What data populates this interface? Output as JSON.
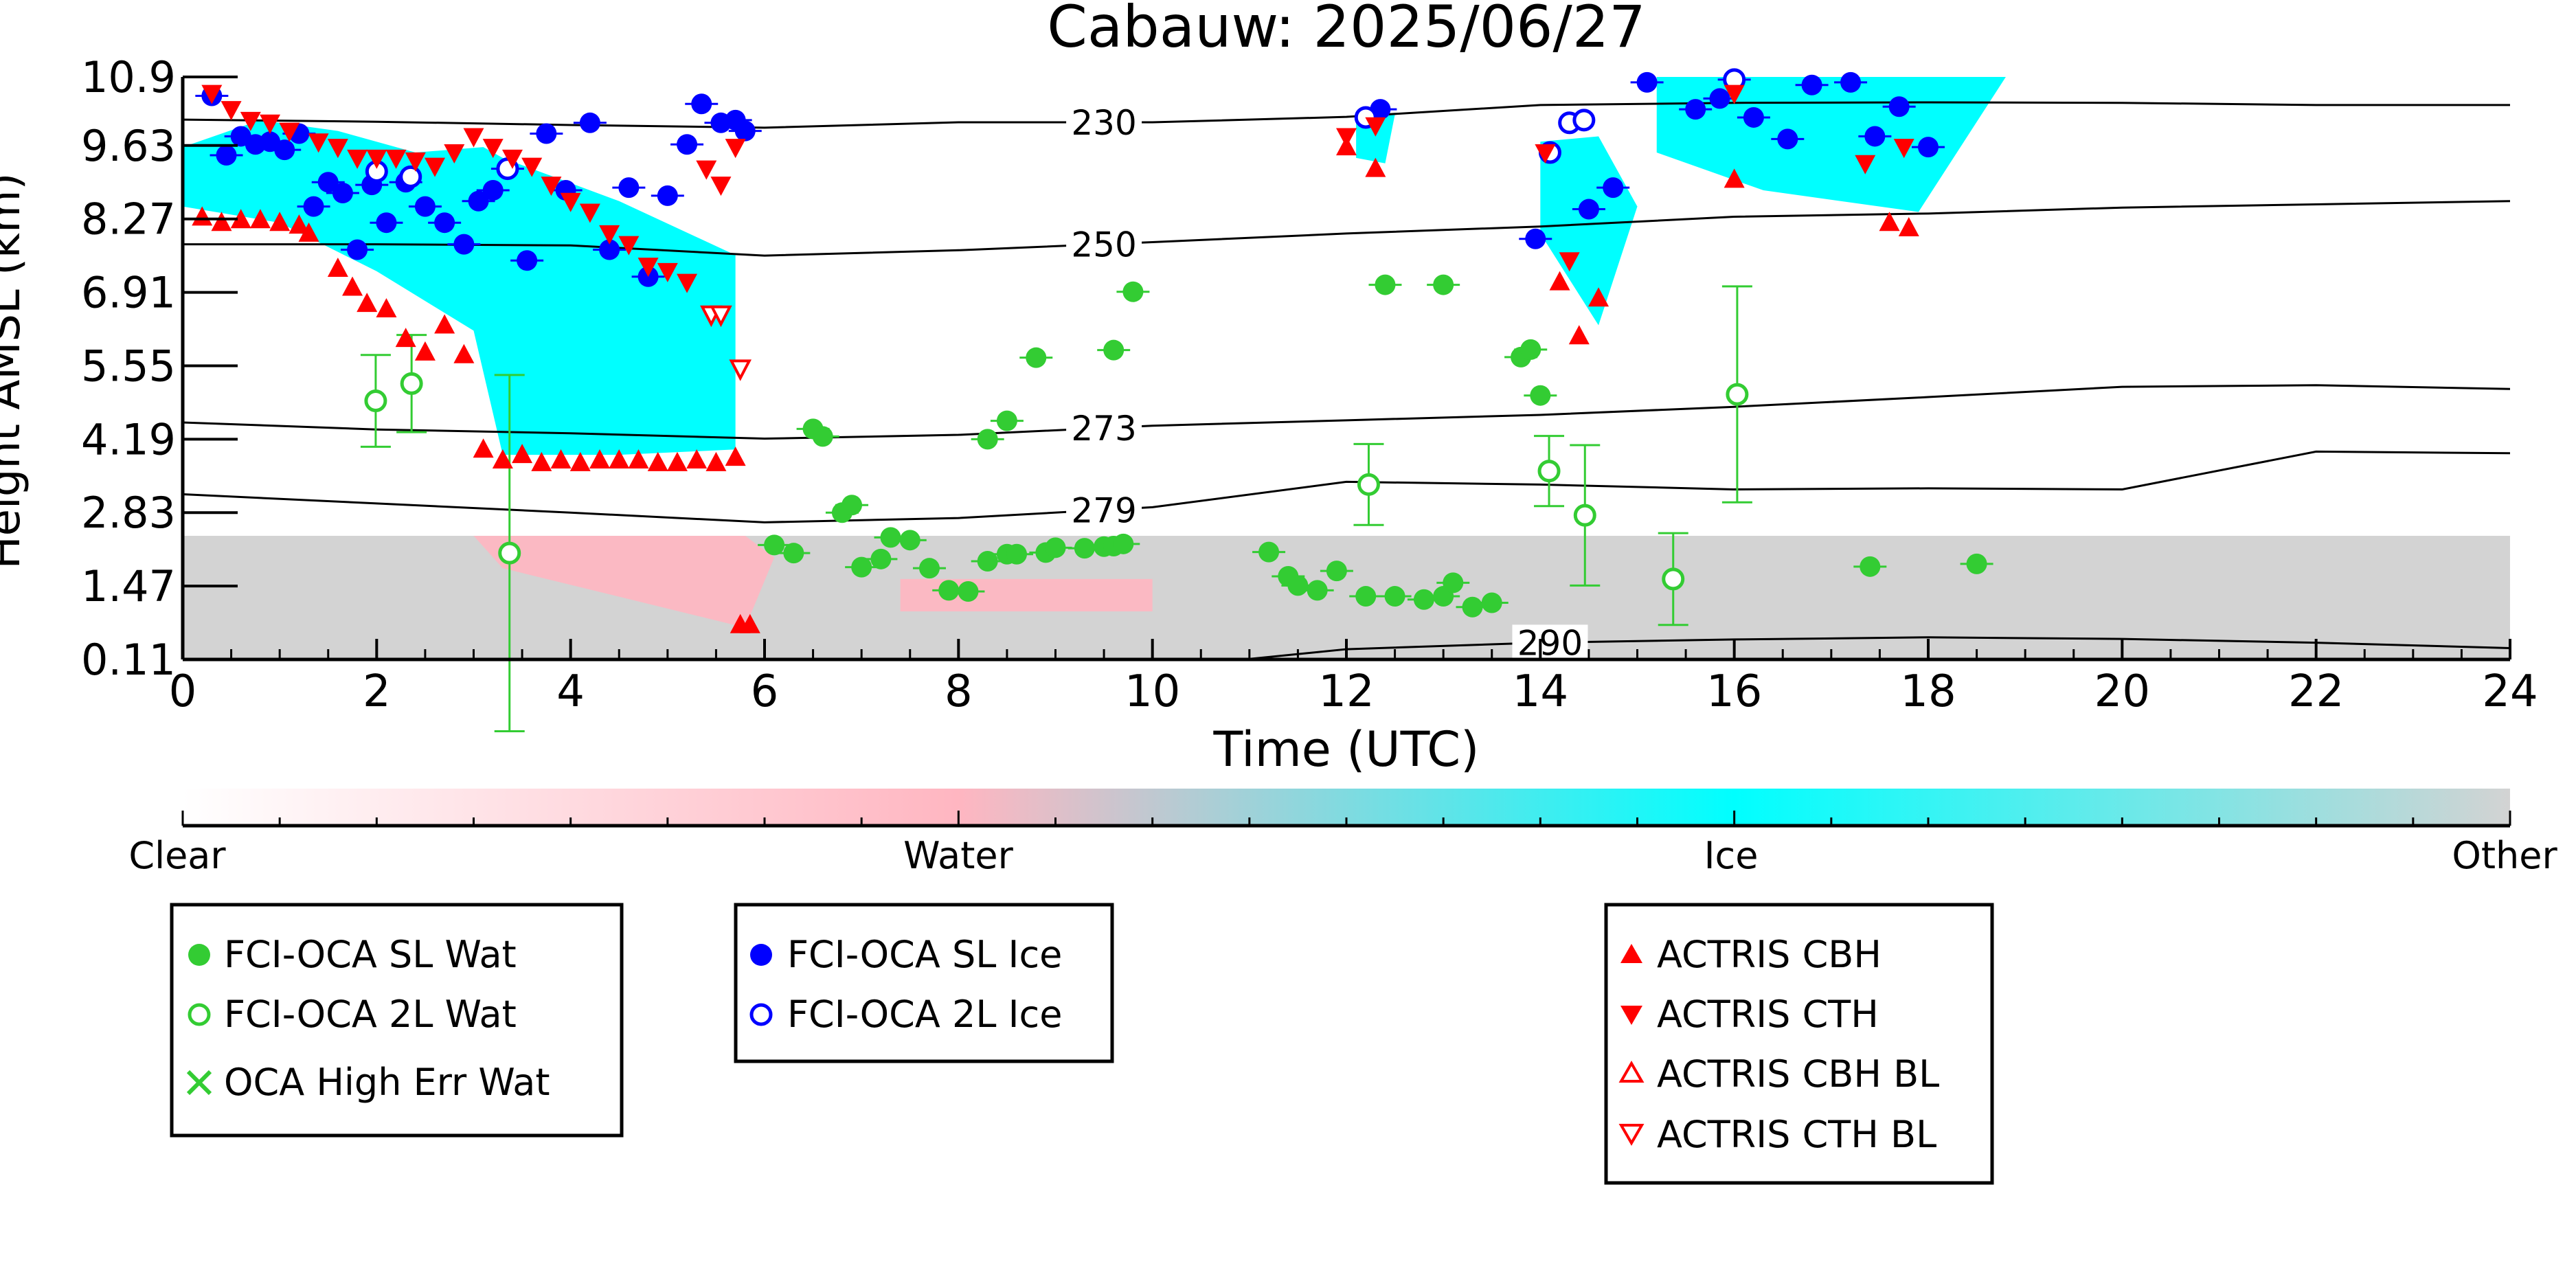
{
  "colors": {
    "sl_wat": "#33cc33",
    "twol_wat": "#33cc33",
    "high_err_wat": "#33cc33",
    "sl_ice": "#0000ff",
    "twol_ice": "#0000ff",
    "actris": "#ff0000",
    "clear": "#ffffff",
    "water": "#ffb6c1",
    "ice": "#00ffff",
    "other": "#d3d3d3"
  },
  "chart_data": {
    "type": "scatter",
    "title": "Cabauw: 2025/06/27",
    "xlabel": "Time (UTC)",
    "ylabel": "Height AMSL (km)",
    "xlim": [
      0,
      24
    ],
    "ylim": [
      0.11,
      10.9
    ],
    "x_ticks": [
      0,
      2,
      4,
      6,
      8,
      10,
      12,
      14,
      16,
      18,
      20,
      22,
      24
    ],
    "y_ticks": [
      "0.11",
      "1.47",
      "2.83",
      "4.19",
      "5.55",
      "6.91",
      "8.27",
      "9.63",
      "10.9"
    ],
    "colorbar": {
      "labels": [
        "Clear",
        "Water",
        "Ice",
        "Other"
      ],
      "stops": [
        "#ffffff",
        "#ffb6c1",
        "#00ffff",
        "#d3d3d3"
      ]
    },
    "background_cloud_mask": {
      "other_low_layer": {
        "x_range": [
          0,
          24
        ],
        "top_km": 2.4
      },
      "ice_regions": [
        {
          "x": [
            0,
            0.8,
            1.6,
            2.4,
            3.1,
            3.3,
            4.5,
            5.7,
            5.7,
            4.5,
            3.3,
            3.0,
            2.0,
            1.0,
            0
          ],
          "y": [
            9.6,
            10.1,
            9.9,
            9.5,
            9.6,
            9.4,
            8.6,
            7.6,
            4.0,
            3.9,
            3.9,
            6.2,
            7.3,
            8.2,
            8.5
          ]
        },
        {
          "x": [
            14,
            14.6,
            15,
            14.6,
            14
          ],
          "y": [
            9.7,
            9.8,
            8.5,
            6.3,
            8.0
          ]
        },
        {
          "x": [
            15.2,
            18.8,
            17.9,
            16.3,
            15.2
          ],
          "y": [
            10.9,
            10.9,
            8.4,
            8.8,
            9.5
          ]
        },
        {
          "x": [
            12.1,
            12.5,
            12.4,
            12.1
          ],
          "y": [
            10.2,
            10.2,
            9.3,
            9.4
          ]
        }
      ],
      "water_regions": [
        {
          "x": [
            3.0,
            5.8,
            6.1,
            5.8,
            3.3
          ],
          "y": [
            2.4,
            2.4,
            2.0,
            0.7,
            1.8
          ]
        },
        {
          "x": [
            7.4,
            10.0,
            10.0,
            7.4
          ],
          "y": [
            1.6,
            1.6,
            1.0,
            1.0
          ]
        }
      ]
    },
    "isotherms": [
      {
        "label": "230",
        "label_x": 9.5,
        "x": [
          0,
          2,
          4,
          6,
          8,
          10,
          12,
          14,
          16,
          18,
          20,
          22,
          24
        ],
        "y": [
          10.11,
          10.07,
          10.01,
          9.96,
          10.06,
          10.06,
          10.16,
          10.38,
          10.42,
          10.43,
          10.42,
          10.38,
          10.38
        ]
      },
      {
        "label": "250",
        "label_x": 9.5,
        "x": [
          0,
          2,
          4,
          6,
          8,
          10,
          12,
          14,
          16,
          18,
          20,
          22,
          24
        ],
        "y": [
          7.8,
          7.8,
          7.78,
          7.59,
          7.69,
          7.84,
          8.0,
          8.13,
          8.31,
          8.37,
          8.48,
          8.54,
          8.6
        ]
      },
      {
        "label": "273",
        "label_x": 9.5,
        "x": [
          0,
          2,
          4,
          6,
          8,
          10,
          12,
          14,
          16,
          18,
          20,
          22,
          24
        ],
        "y": [
          4.5,
          4.37,
          4.3,
          4.2,
          4.27,
          4.44,
          4.54,
          4.64,
          4.79,
          4.97,
          5.16,
          5.19,
          5.12
        ]
      },
      {
        "label": "279",
        "label_x": 9.5,
        "x": [
          0,
          2,
          4,
          6,
          8,
          10,
          12,
          14,
          16,
          18,
          20,
          22,
          24
        ],
        "y": [
          3.17,
          3.0,
          2.83,
          2.65,
          2.73,
          2.93,
          3.4,
          3.35,
          3.26,
          3.28,
          3.26,
          3.96,
          3.93
        ]
      },
      {
        "label": "290",
        "label_x": 14.1,
        "x": [
          0,
          2,
          4,
          6,
          8,
          10,
          11,
          12,
          14,
          16,
          18,
          20,
          22,
          24
        ],
        "y": [
          -0.4,
          -0.3,
          -0.2,
          -0.1,
          -0.05,
          0.0,
          0.12,
          0.3,
          0.42,
          0.48,
          0.52,
          0.49,
          0.42,
          0.32
        ]
      }
    ],
    "series": [
      {
        "name": "FCI-OCA SL Wat",
        "marker": "filled-circle",
        "x": [
          6.1,
          6.3,
          6.5,
          6.6,
          6.8,
          6.9,
          7.0,
          7.2,
          7.3,
          7.5,
          7.7,
          7.9,
          8.1,
          8.3,
          8.5,
          8.6,
          8.9,
          9.0,
          9.3,
          9.5,
          9.6,
          9.7,
          11.2,
          11.4,
          11.5,
          11.7,
          11.9,
          12.2,
          12.5,
          12.8,
          13.0,
          13.1,
          13.3,
          13.5,
          13.8,
          13.9,
          14.0,
          8.3,
          8.5,
          8.8,
          9.6,
          9.8,
          12.4,
          13.0,
          17.4,
          18.5
        ],
        "y": [
          2.23,
          2.08,
          4.38,
          4.24,
          2.83,
          2.97,
          1.82,
          1.97,
          2.37,
          2.32,
          1.8,
          1.39,
          1.37,
          1.93,
          2.06,
          2.06,
          2.09,
          2.18,
          2.17,
          2.2,
          2.21,
          2.25,
          2.1,
          1.65,
          1.48,
          1.39,
          1.75,
          1.28,
          1.28,
          1.22,
          1.28,
          1.53,
          1.08,
          1.16,
          5.71,
          5.85,
          5.0,
          4.19,
          4.53,
          5.7,
          5.84,
          6.92,
          7.05,
          7.05,
          1.83,
          1.88
        ]
      },
      {
        "name": "FCI-OCA 2L Wat",
        "marker": "open-circle",
        "x": [
          1.99,
          2.36,
          3.37,
          12.23,
          14.09,
          14.46,
          15.37,
          16.03
        ],
        "y": [
          4.9,
          5.22,
          2.08,
          3.35,
          3.6,
          2.78,
          1.6,
          5.02
        ],
        "yerr": [
          0.85,
          0.9,
          3.3,
          0.75,
          0.65,
          1.3,
          0.85,
          2.0
        ]
      },
      {
        "name": "OCA High Err Wat",
        "marker": "x",
        "x": [],
        "y": []
      },
      {
        "name": "FCI-OCA SL Ice",
        "marker": "filled-circle",
        "x": [
          0.3,
          0.45,
          0.6,
          0.75,
          0.9,
          1.05,
          1.2,
          1.35,
          1.5,
          1.65,
          1.8,
          1.95,
          2.1,
          2.3,
          2.5,
          2.7,
          2.9,
          3.05,
          3.2,
          3.35,
          3.55,
          3.75,
          3.95,
          4.2,
          4.4,
          4.6,
          4.8,
          5.0,
          5.2,
          5.35,
          5.55,
          5.7,
          5.8,
          12.35,
          13.95,
          14.5,
          14.75,
          15.1,
          15.6,
          15.85,
          16.0,
          16.2,
          16.55,
          16.8,
          17.2,
          17.45,
          17.7,
          18.0
        ],
        "y": [
          10.55,
          9.45,
          9.8,
          9.65,
          9.7,
          9.55,
          9.85,
          8.5,
          8.95,
          8.75,
          7.7,
          8.9,
          8.2,
          8.95,
          8.5,
          8.2,
          7.8,
          8.6,
          8.8,
          9.2,
          7.5,
          9.85,
          8.8,
          10.05,
          7.7,
          8.85,
          7.2,
          8.7,
          9.65,
          10.4,
          10.05,
          10.1,
          9.9,
          10.3,
          7.9,
          8.45,
          8.85,
          10.8,
          10.3,
          10.5,
          10.85,
          10.15,
          9.75,
          10.75,
          10.8,
          9.8,
          10.35,
          9.6
        ]
      },
      {
        "name": "FCI-OCA 2L Ice",
        "marker": "open-circle",
        "x": [
          2.0,
          2.35,
          3.35,
          12.2,
          14.1,
          14.3,
          14.45,
          16.0
        ],
        "y": [
          9.15,
          9.05,
          9.2,
          10.15,
          9.5,
          10.05,
          10.1,
          10.85
        ]
      },
      {
        "name": "ACTRIS CBH",
        "marker": "filled-up-triangle",
        "x": [
          0.2,
          0.4,
          0.6,
          0.8,
          1.0,
          1.2,
          1.3,
          1.6,
          1.75,
          1.9,
          2.1,
          2.3,
          2.5,
          2.7,
          2.9,
          3.1,
          3.3,
          3.5,
          3.7,
          3.9,
          4.1,
          4.3,
          4.5,
          4.7,
          4.9,
          5.1,
          5.3,
          5.5,
          5.7,
          5.75,
          5.85,
          12.0,
          12.3,
          14.2,
          14.4,
          14.6,
          16.0,
          17.6,
          17.8
        ],
        "y": [
          8.3,
          8.2,
          8.25,
          8.25,
          8.2,
          8.15,
          8.0,
          7.35,
          7.0,
          6.7,
          6.6,
          6.05,
          5.8,
          6.3,
          5.75,
          4.0,
          3.8,
          3.9,
          3.75,
          3.8,
          3.75,
          3.8,
          3.8,
          3.8,
          3.75,
          3.75,
          3.8,
          3.75,
          3.85,
          0.75,
          0.75,
          9.6,
          9.2,
          7.1,
          6.1,
          6.8,
          9.0,
          8.2,
          8.1
        ]
      },
      {
        "name": "ACTRIS CTH",
        "marker": "filled-down-triangle",
        "x": [
          0.3,
          0.5,
          0.7,
          0.9,
          1.1,
          1.4,
          1.6,
          1.8,
          2.0,
          2.2,
          2.4,
          2.6,
          2.8,
          3.0,
          3.2,
          3.4,
          3.6,
          3.8,
          4.0,
          4.2,
          4.4,
          4.6,
          4.8,
          5.0,
          5.2,
          5.4,
          5.55,
          5.7,
          12.0,
          12.3,
          14.05,
          14.3,
          16.0,
          17.35,
          17.75
        ],
        "y": [
          10.6,
          10.3,
          10.1,
          10.05,
          9.9,
          9.7,
          9.6,
          9.4,
          9.4,
          9.4,
          9.35,
          9.25,
          9.5,
          9.8,
          9.6,
          9.4,
          9.25,
          8.9,
          8.6,
          8.4,
          8.0,
          7.8,
          7.4,
          7.3,
          7.1,
          9.2,
          8.9,
          9.6,
          9.8,
          10.0,
          9.5,
          7.5,
          10.6,
          9.3,
          9.6
        ]
      },
      {
        "name": "ACTRIS CBH BL",
        "marker": "open-up-triangle",
        "x": [],
        "y": []
      },
      {
        "name": "ACTRIS CTH BL",
        "marker": "open-down-triangle",
        "x": [
          5.45,
          5.55,
          5.75
        ],
        "y": [
          6.5,
          6.5,
          5.5
        ]
      }
    ]
  }
}
